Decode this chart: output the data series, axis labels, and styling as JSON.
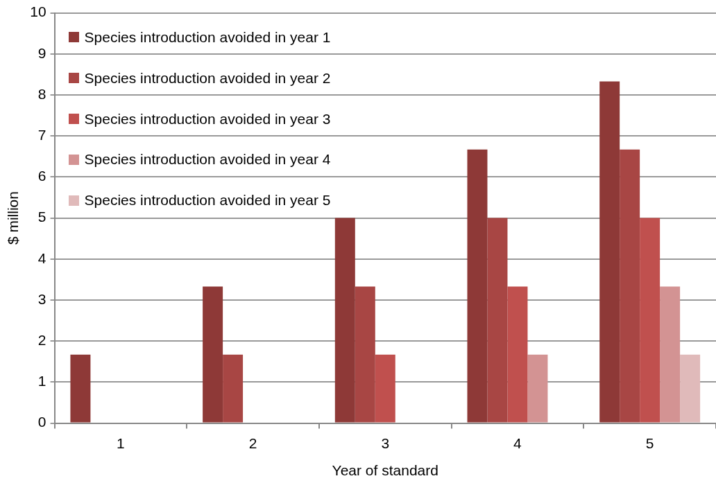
{
  "chart_data": {
    "type": "bar",
    "xlabel": "Year of standard",
    "ylabel": "$ million",
    "categories": [
      "1",
      "2",
      "3",
      "4",
      "5"
    ],
    "series": [
      {
        "name": "Species introduction avoided in year 1",
        "color": "#8e3937",
        "values": [
          1.67,
          3.33,
          5,
          6.67,
          8.33
        ]
      },
      {
        "name": "Species introduction avoided in year 2",
        "color": "#a84644",
        "values": [
          null,
          1.67,
          3.33,
          5,
          6.67
        ]
      },
      {
        "name": "Species introduction avoided in year 3",
        "color": "#c0504e",
        "values": [
          null,
          null,
          1.67,
          3.33,
          5
        ]
      },
      {
        "name": "Species introduction avoided in year 4",
        "color": "#d39393",
        "values": [
          null,
          null,
          null,
          1.67,
          3.33
        ]
      },
      {
        "name": "Species introduction avoided in year 5",
        "color": "#e0baba",
        "values": [
          null,
          null,
          null,
          null,
          1.67
        ]
      }
    ],
    "ylim": [
      0,
      10
    ],
    "yticks": [
      0,
      1,
      2,
      3,
      4,
      5,
      6,
      7,
      8,
      9,
      10
    ],
    "grid": "y",
    "legend": "top left"
  }
}
